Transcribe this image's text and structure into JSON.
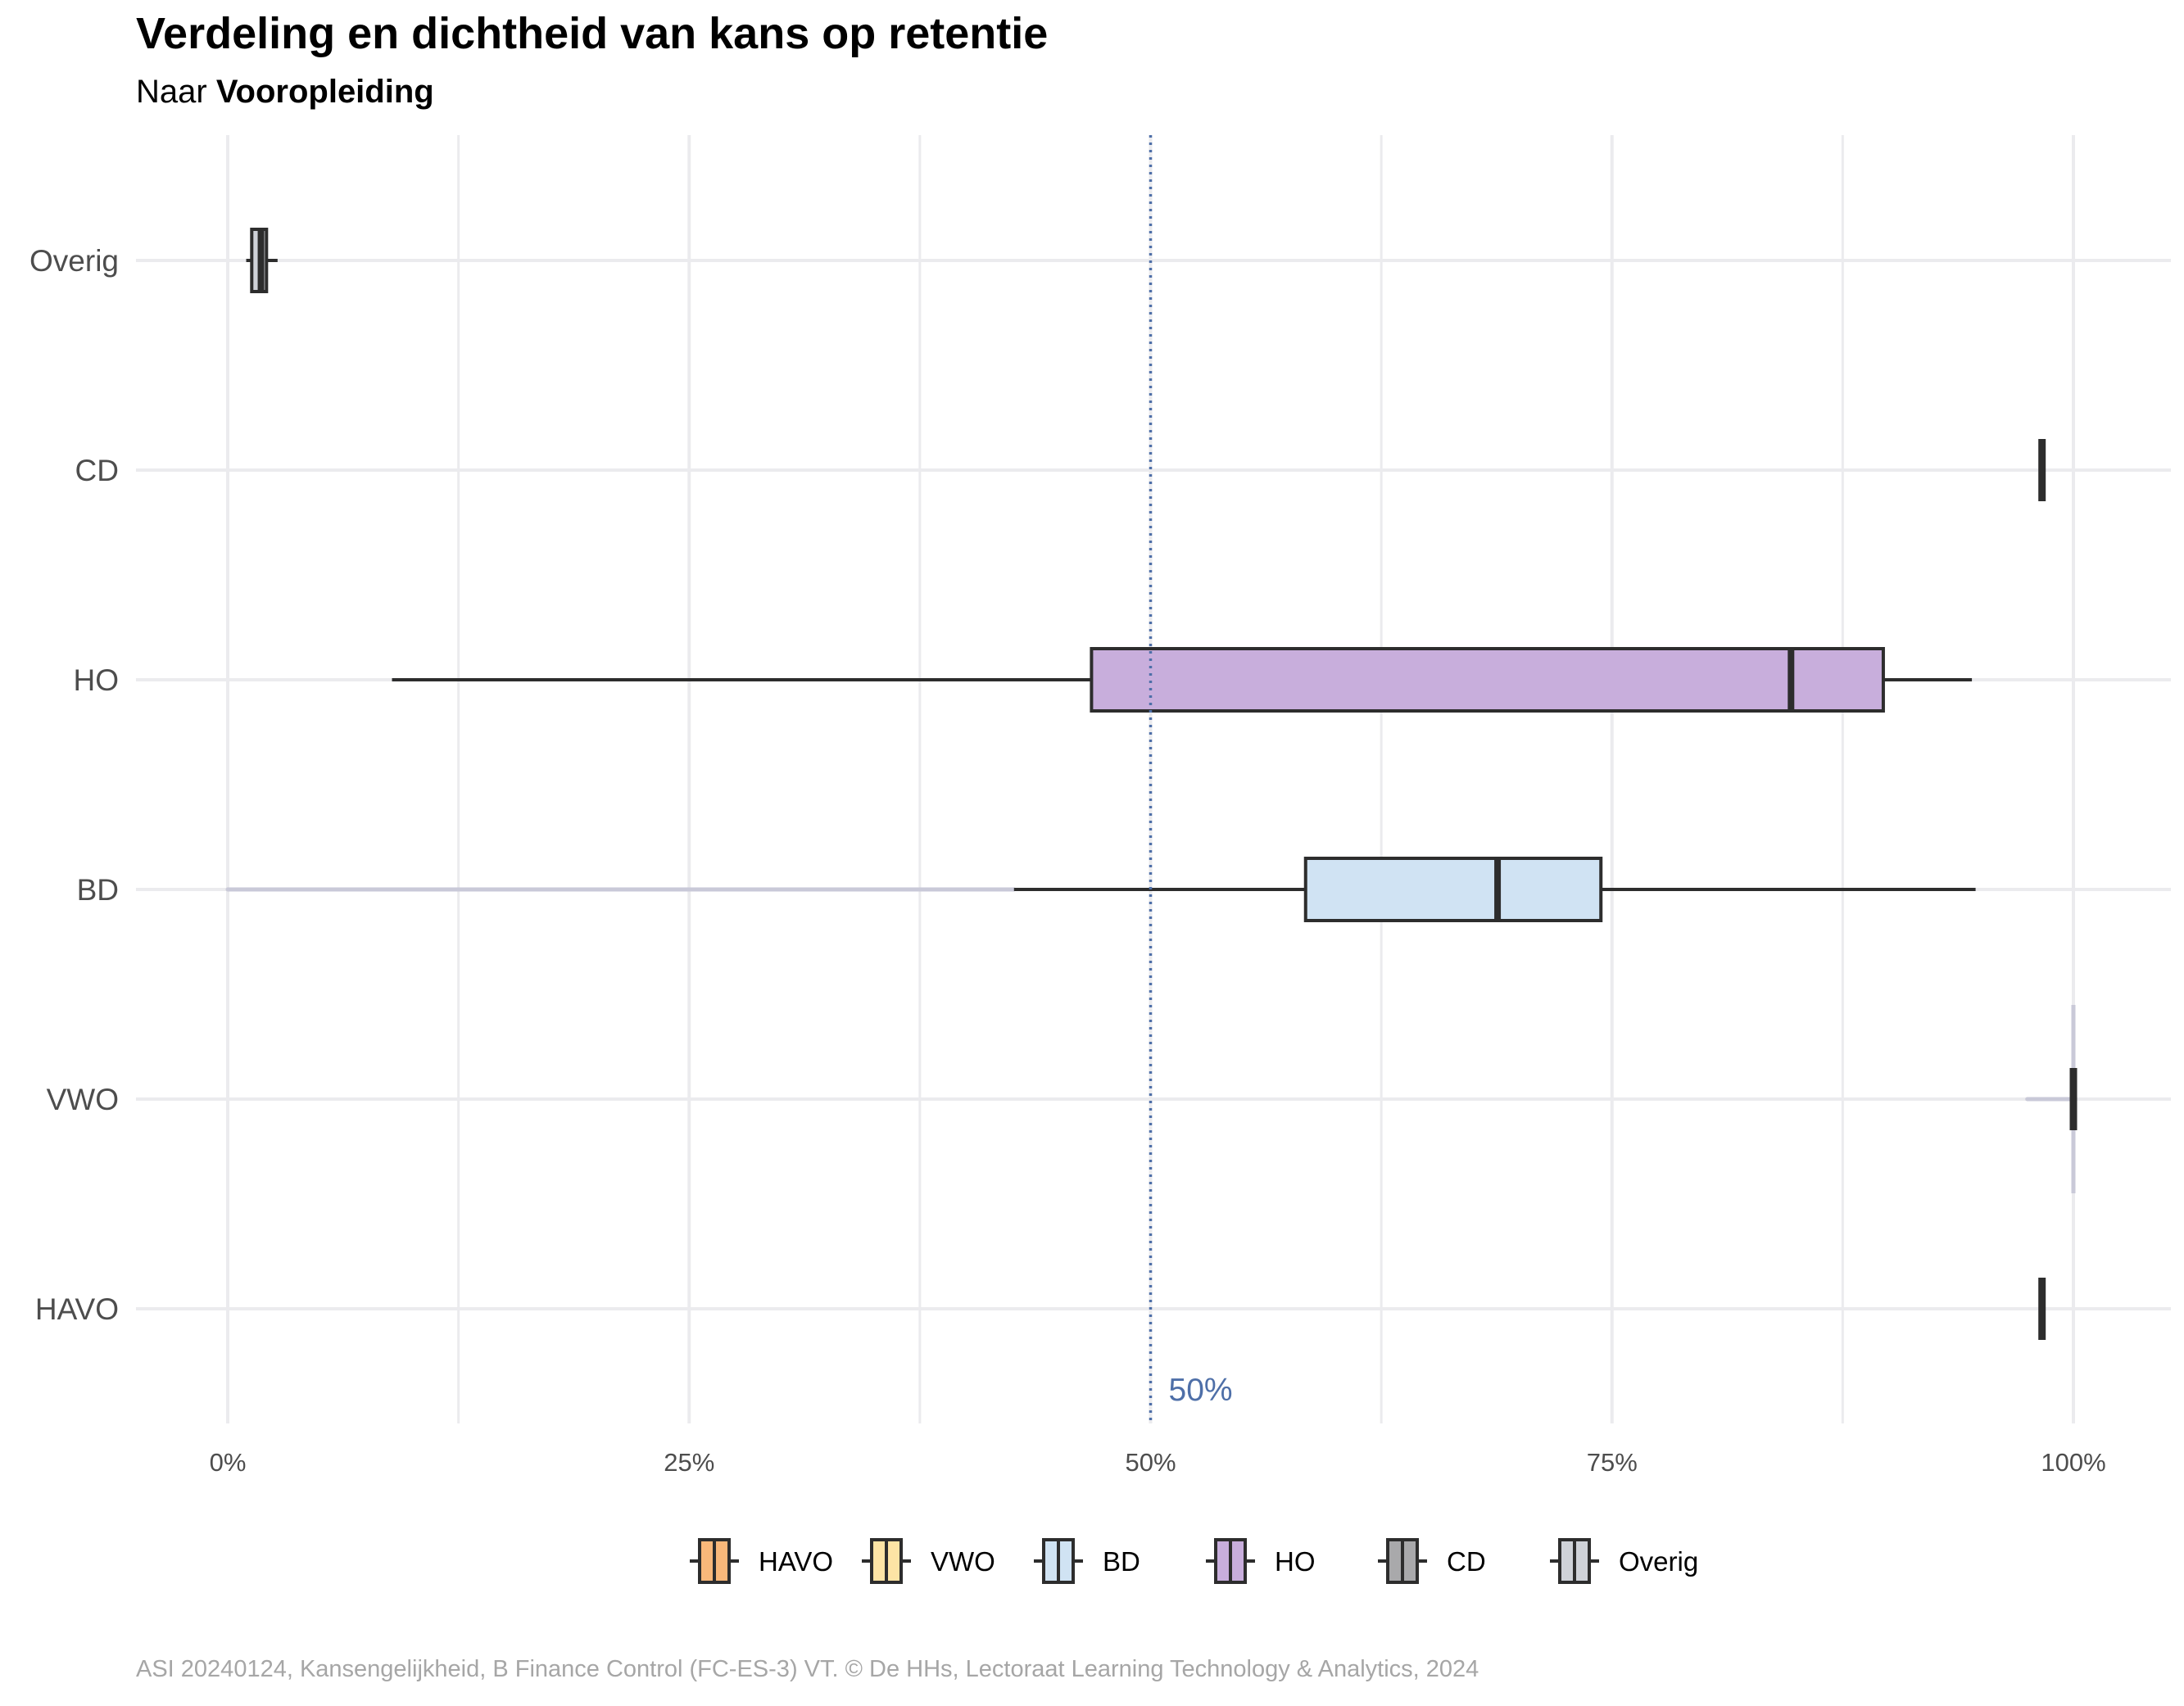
{
  "chart_data": {
    "type": "boxplot",
    "title": "Verdeling en dichtheid van kans op retentie",
    "subtitle_prefix": "Naar ",
    "subtitle_bold": "Vooropleiding",
    "xlabel": "",
    "ylabel": "",
    "xlim": [
      0,
      1
    ],
    "x_ticks": [
      0,
      0.25,
      0.5,
      0.75,
      1.0
    ],
    "x_tick_labels": [
      "0%",
      "25%",
      "50%",
      "75%",
      "100%"
    ],
    "grid": true,
    "reference_line": {
      "value": 0.5,
      "label": "50%",
      "color": "#4e6fa8",
      "style": "dotted"
    },
    "legend_position": "bottom",
    "categories": [
      "HAVO",
      "VWO",
      "BD",
      "HO",
      "CD",
      "Overig"
    ],
    "series": [
      {
        "name": "HAVO",
        "color": "#f9b87a",
        "min": 0.983,
        "q1": 0.983,
        "median": 0.983,
        "q3": 0.983,
        "max": 0.983,
        "density_min": null
      },
      {
        "name": "VWO",
        "color": "#fde4a5",
        "min": 1.0,
        "q1": 1.0,
        "median": 1.0,
        "q3": 1.0,
        "max": 1.0,
        "density_min": 0.975
      },
      {
        "name": "BD",
        "color": "#d0e3f3",
        "min": 0.426,
        "q1": 0.584,
        "median": 0.688,
        "q3": 0.744,
        "max": 0.947,
        "density_min": 0.0
      },
      {
        "name": "HO",
        "color": "#c8aedc",
        "min": 0.089,
        "q1": 0.468,
        "median": 0.847,
        "q3": 0.897,
        "max": 0.945,
        "density_min": null
      },
      {
        "name": "CD",
        "color": "#a9a9ab",
        "min": 0.983,
        "q1": 0.983,
        "median": 0.983,
        "q3": 0.983,
        "max": 0.983,
        "density_min": null
      },
      {
        "name": "Overig",
        "color": "#cfd2d8",
        "min": 0.01,
        "q1": 0.013,
        "median": 0.018,
        "q3": 0.021,
        "max": 0.027,
        "density_min": null
      }
    ]
  },
  "caption": "ASI 20240124, Kansengelijkheid, B Finance Control (FC-ES-3) VT. © De HHs, Lectoraat Learning Technology & Analytics, 2024"
}
